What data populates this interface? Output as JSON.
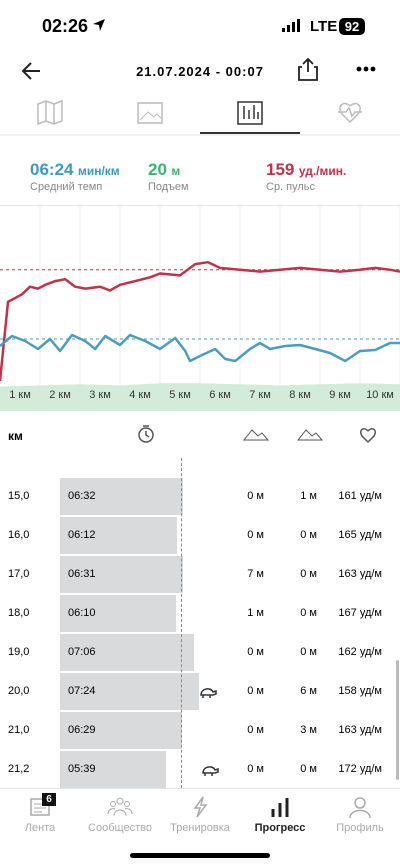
{
  "status_bar": {
    "time": "02:26",
    "network": "LTE",
    "battery": "92"
  },
  "header": {
    "title": "21.07.2024 - 00:07"
  },
  "stats": [
    {
      "value": "06:24",
      "unit": "мин/км",
      "label": "Средний темп"
    },
    {
      "value": "20",
      "unit": "м",
      "label": "Подъем"
    },
    {
      "value": "159",
      "unit": "уд./мин.",
      "label": "Ср. пульс"
    }
  ],
  "chart_data": {
    "type": "line",
    "xlim": [
      0.5,
      10.5
    ],
    "xticks": [
      {
        "value": 1,
        "label": "1 км"
      },
      {
        "value": 2,
        "label": "2 км"
      },
      {
        "value": 3,
        "label": "3 км"
      },
      {
        "value": 4,
        "label": "4 км"
      },
      {
        "value": 5,
        "label": "5 км"
      },
      {
        "value": 6,
        "label": "6 км"
      },
      {
        "value": 7,
        "label": "7 км"
      },
      {
        "value": 8,
        "label": "8 км"
      },
      {
        "value": 9,
        "label": "9 км"
      },
      {
        "value": 10,
        "label": "10 км"
      }
    ],
    "ylim": [
      100,
      170
    ],
    "y2lim": [
      470,
      300
    ],
    "y3lim": [
      0,
      20
    ],
    "averages": {
      "y": 159,
      "y2": 384
    },
    "series": [
      {
        "color": "#c0334a",
        "x": [
          0.5,
          0.7,
          0.88,
          1.05,
          1.25,
          1.45,
          1.63,
          1.88,
          2.13,
          2.38,
          2.63,
          3,
          3.25,
          3.5,
          3.88,
          4.25,
          4.5,
          5,
          5.38,
          5.7,
          6,
          6.5,
          7,
          7.5,
          8,
          8.5,
          9,
          9.5,
          9.88,
          10.25,
          10.5
        ],
        "values": [
          100,
          142,
          144,
          146,
          150,
          149,
          151,
          153,
          154,
          150,
          149,
          150,
          148,
          151,
          153,
          155,
          157,
          156,
          162,
          163,
          160,
          159,
          158,
          159,
          160,
          159,
          158,
          159,
          160,
          159,
          158
        ]
      },
      {
        "color": "#4a9cc0",
        "axis": "y2",
        "x": [
          0.5,
          0.8,
          1.13,
          1.45,
          1.75,
          2,
          2.3,
          2.63,
          2.88,
          3.13,
          3.5,
          3.75,
          4.13,
          4.5,
          4.88,
          5.13,
          5.25,
          5.5,
          5.88,
          6.13,
          6.38,
          6.75,
          7,
          7.25,
          7.63,
          8,
          8.38,
          8.75,
          9.13,
          9.5,
          9.88,
          10.25,
          10.5
        ],
        "values": [
          398,
          378,
          388,
          404,
          384,
          408,
          376,
          388,
          404,
          378,
          396,
          376,
          388,
          404,
          382,
          408,
          428,
          418,
          404,
          424,
          428,
          404,
          392,
          404,
          398,
          396,
          404,
          412,
          428,
          408,
          406,
          392,
          392
        ]
      },
      {
        "color": "#d3ecd9",
        "axis": "y3",
        "x": [
          0.5,
          1.5,
          2.5,
          3.5,
          4.5,
          5.5,
          6.5,
          7.5,
          8.5,
          9.5,
          10.5
        ],
        "values": [
          15,
          16,
          17,
          16,
          18,
          18,
          17,
          16,
          17,
          18,
          17
        ]
      }
    ]
  },
  "table": {
    "header": "км",
    "rows": [
      [
        "15,0",
        "06:32",
        "0 м",
        "1 м",
        "161 уд/м"
      ],
      [
        "16,0",
        "06:12",
        "0 м",
        "0 м",
        "165 уд/м"
      ],
      [
        "17,0",
        "06:31",
        "7 м",
        "0 м",
        "163 уд/м"
      ],
      [
        "18,0",
        "06:10",
        "1 м",
        "0 м",
        "167 уд/м"
      ],
      [
        "19,0",
        "07:06",
        "0 м",
        "0 м",
        "162 уд/м"
      ],
      [
        "20,0",
        "07:24",
        "0 м",
        "6 м",
        "158 уд/м"
      ],
      [
        "21,0",
        "06:29",
        "0 м",
        "3 м",
        "163 уд/м"
      ],
      [
        "21,2",
        "05:39",
        "0 м",
        "0 м",
        "172 уд/м"
      ]
    ]
  },
  "tabs": [
    {
      "label": "Лента",
      "badge": "6"
    },
    {
      "label": "Сообщество"
    },
    {
      "label": "Тренировка"
    },
    {
      "label": "Прогресс"
    },
    {
      "label": "Профиль"
    }
  ]
}
